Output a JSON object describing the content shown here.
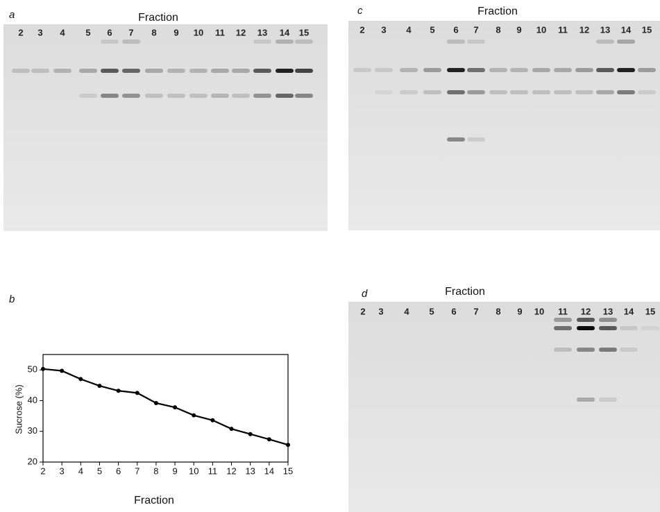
{
  "panels": [
    {
      "label": "a",
      "title": "Fraction",
      "lanes": [
        "2",
        "3",
        "4",
        "5",
        "6",
        "7",
        "8",
        "9",
        "10",
        "11",
        "12",
        "13",
        "14",
        "15"
      ]
    },
    {
      "label": "c",
      "title": "Fraction",
      "lanes": [
        "2",
        "3",
        "4",
        "5",
        "6",
        "7",
        "8",
        "9",
        "10",
        "11",
        "12",
        "13",
        "14",
        "15"
      ]
    },
    {
      "label": "d",
      "title": "Fraction",
      "lanes": [
        "2",
        "3",
        "4",
        "5",
        "6",
        "7",
        "8",
        "9",
        "10",
        "11",
        "12",
        "13",
        "14",
        "15"
      ]
    }
  ],
  "chart_data": {
    "type": "line",
    "panel_label": "b",
    "xlabel": "Fraction",
    "ylabel": "Sucrose (%)",
    "x": [
      2,
      3,
      4,
      5,
      6,
      7,
      8,
      9,
      10,
      11,
      12,
      13,
      14,
      15
    ],
    "values": [
      50.3,
      49.7,
      47,
      44.8,
      43.2,
      42.5,
      39.2,
      37.8,
      35.2,
      33.6,
      30.8,
      29.1,
      27.4,
      25.6
    ],
    "color": "#000000",
    "xlim": [
      2,
      15
    ],
    "ylim": [
      20,
      55
    ],
    "xticks": [
      2,
      3,
      4,
      5,
      6,
      7,
      8,
      9,
      10,
      11,
      12,
      13,
      14,
      15
    ],
    "yticks": [
      20,
      30,
      40,
      50
    ]
  }
}
